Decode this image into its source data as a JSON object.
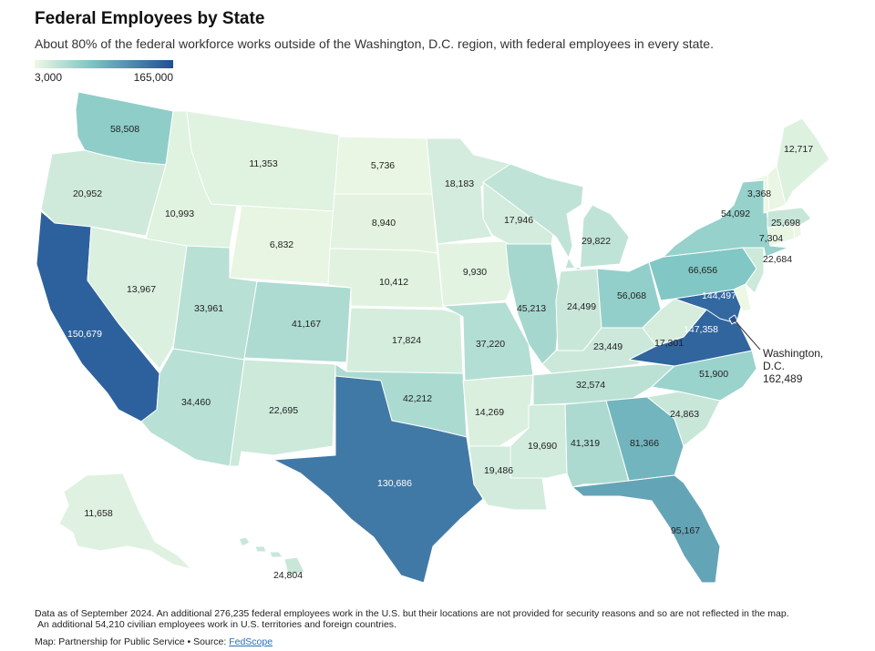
{
  "title": "Federal Employees by State",
  "subtitle": "About 80% of the federal workforce works outside of the Washington, D.C. region, with federal employees in every state.",
  "legend": {
    "min_label": "3,000",
    "max_label": "165,000",
    "min_value": 3000,
    "max_value": 165000,
    "color_low": "#eef8e4",
    "color_mid": "#7fc6c4",
    "color_high": "#1f4f96"
  },
  "states": [
    {
      "id": "WA",
      "value": 58508,
      "label": "58,508"
    },
    {
      "id": "OR",
      "value": 20952,
      "label": "20,952"
    },
    {
      "id": "CA",
      "value": 150679,
      "label": "150,679"
    },
    {
      "id": "ID",
      "value": 10993,
      "label": "10,993"
    },
    {
      "id": "NV",
      "value": 13967,
      "label": "13,967"
    },
    {
      "id": "MT",
      "value": 11353,
      "label": "11,353"
    },
    {
      "id": "WY",
      "value": 6832,
      "label": "6,832"
    },
    {
      "id": "UT",
      "value": 33961,
      "label": "33,961"
    },
    {
      "id": "AZ",
      "value": 34460,
      "label": "34,460"
    },
    {
      "id": "CO",
      "value": 41167,
      "label": "41,167"
    },
    {
      "id": "NM",
      "value": 22695,
      "label": "22,695"
    },
    {
      "id": "ND",
      "value": 5736,
      "label": "5,736"
    },
    {
      "id": "SD",
      "value": 8940,
      "label": "8,940"
    },
    {
      "id": "NE",
      "value": 10412,
      "label": "10,412"
    },
    {
      "id": "KS",
      "value": 17824,
      "label": "17,824"
    },
    {
      "id": "OK",
      "value": 42212,
      "label": "42,212"
    },
    {
      "id": "TX",
      "value": 130686,
      "label": "130,686"
    },
    {
      "id": "MN",
      "value": 18183,
      "label": "18,183"
    },
    {
      "id": "IA",
      "value": 9930,
      "label": "9,930"
    },
    {
      "id": "MO",
      "value": 37220,
      "label": "37,220"
    },
    {
      "id": "AR",
      "value": 14269,
      "label": "14,269"
    },
    {
      "id": "LA",
      "value": 19486,
      "label": "19,486"
    },
    {
      "id": "WI",
      "value": 17946,
      "label": "17,946"
    },
    {
      "id": "IL",
      "value": 45213,
      "label": "45,213"
    },
    {
      "id": "MI",
      "value": 29822,
      "label": "29,822"
    },
    {
      "id": "IN",
      "value": 24499,
      "label": "24,499"
    },
    {
      "id": "OH",
      "value": 56068,
      "label": "56,068"
    },
    {
      "id": "KY",
      "value": 23449,
      "label": "23,449"
    },
    {
      "id": "TN",
      "value": 32574,
      "label": "32,574"
    },
    {
      "id": "MS",
      "value": 19690,
      "label": "19,690"
    },
    {
      "id": "AL",
      "value": 41319,
      "label": "41,319"
    },
    {
      "id": "GA",
      "value": 81366,
      "label": "81,366"
    },
    {
      "id": "FL",
      "value": 95167,
      "label": "95,167"
    },
    {
      "id": "SC",
      "value": 24863,
      "label": "24,863"
    },
    {
      "id": "NC",
      "value": 51900,
      "label": "51,900"
    },
    {
      "id": "VA",
      "value": 147358,
      "label": "147,358"
    },
    {
      "id": "WV",
      "value": 17301,
      "label": "17,301"
    },
    {
      "id": "MD",
      "value": 144497,
      "label": "144,497"
    },
    {
      "id": "DE",
      "value": 4000,
      "label": ""
    },
    {
      "id": "PA",
      "value": 66656,
      "label": "66,656"
    },
    {
      "id": "NJ",
      "value": 22684,
      "label": "22,684"
    },
    {
      "id": "NY",
      "value": 54092,
      "label": "54,092"
    },
    {
      "id": "CT",
      "value": 7304,
      "label": "7,304"
    },
    {
      "id": "RI",
      "value": 5000,
      "label": ""
    },
    {
      "id": "MA",
      "value": 25698,
      "label": "25,698"
    },
    {
      "id": "VT",
      "value": 3368,
      "label": "3,368"
    },
    {
      "id": "NH",
      "value": 5500,
      "label": ""
    },
    {
      "id": "ME",
      "value": 12717,
      "label": "12,717"
    },
    {
      "id": "AK",
      "value": 11658,
      "label": "11,658"
    },
    {
      "id": "HI",
      "value": 24804,
      "label": "24,804"
    },
    {
      "id": "DC",
      "value": 162489,
      "label": ""
    }
  ],
  "dc_callout": {
    "line1": "Washington,",
    "line2": "D.C.",
    "line3": "162,489",
    "value": 162489
  },
  "footnote": {
    "line1": "Data as of September 2024. An additional 276,235 federal employees work in the U.S. but their locations are not provided for security reasons and so are not reflected in the map.",
    "line2": "An additional 54,210 civilian employees work in U.S. territories and foreign countries."
  },
  "credit": {
    "prefix": "Map: Partnership for Public Service • Source: ",
    "source_link": "FedScope"
  }
}
